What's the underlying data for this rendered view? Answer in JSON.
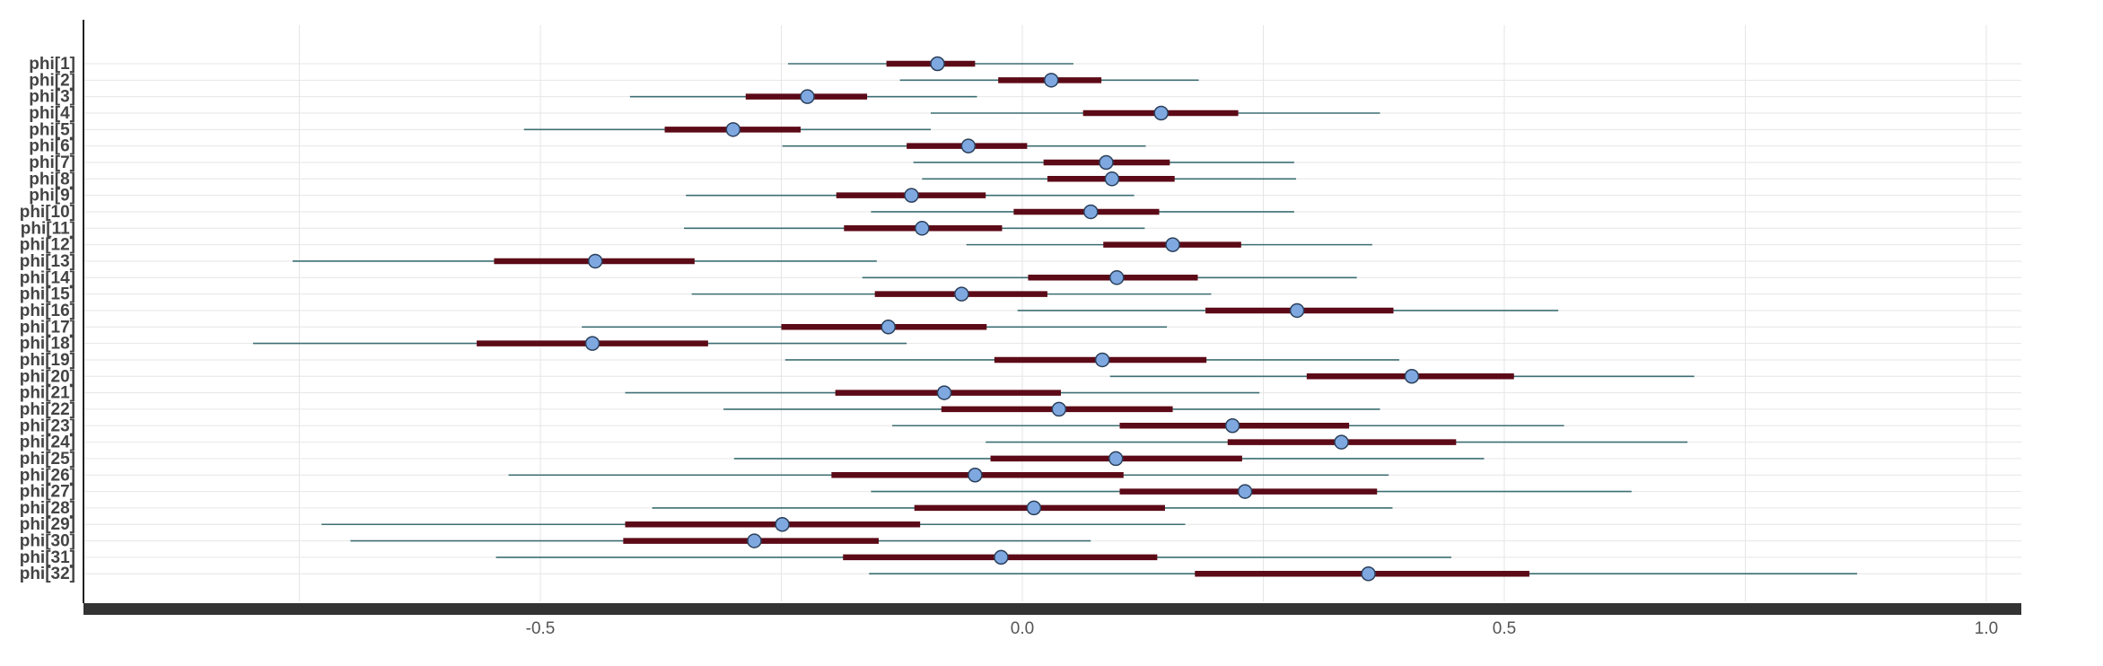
{
  "chart_data": {
    "type": "forest",
    "title": "",
    "xlabel": "",
    "ylabel": "",
    "xlim": [
      -0.95,
      1.04
    ],
    "x_ticks": [
      {
        "value": -0.5,
        "label": "-0.5"
      },
      {
        "value": 0.0,
        "label": "0.0"
      },
      {
        "value": 0.5,
        "label": "0.5"
      },
      {
        "value": 1.0,
        "label": "1.0"
      }
    ],
    "grid": true,
    "colors": {
      "hdi_line": "#3d6e72",
      "iqr_bar": "#5c0a17",
      "point_fill": "#7fa8e0",
      "point_stroke": "#2a3f5a",
      "grid": "#e6e6e6",
      "axis_bar": "#333333",
      "label": "#444444"
    },
    "rows": [
      {
        "label": "phi[1]",
        "hdi": [
          -0.243,
          0.053
        ],
        "iqr": [
          -0.141,
          -0.049
        ],
        "point": -0.088
      },
      {
        "label": "phi[2]",
        "hdi": [
          -0.127,
          0.183
        ],
        "iqr": [
          -0.025,
          0.082
        ],
        "point": 0.03
      },
      {
        "label": "phi[3]",
        "hdi": [
          -0.407,
          -0.047
        ],
        "iqr": [
          -0.287,
          -0.161
        ],
        "point": -0.223
      },
      {
        "label": "phi[4]",
        "hdi": [
          -0.095,
          0.371
        ],
        "iqr": [
          0.063,
          0.224
        ],
        "point": 0.144
      },
      {
        "label": "phi[5]",
        "hdi": [
          -0.517,
          -0.095
        ],
        "iqr": [
          -0.371,
          -0.23
        ],
        "point": -0.3
      },
      {
        "label": "phi[6]",
        "hdi": [
          -0.249,
          0.128
        ],
        "iqr": [
          -0.12,
          0.005
        ],
        "point": -0.056
      },
      {
        "label": "phi[7]",
        "hdi": [
          -0.113,
          0.282
        ],
        "iqr": [
          0.022,
          0.153
        ],
        "point": 0.087
      },
      {
        "label": "phi[8]",
        "hdi": [
          -0.104,
          0.284
        ],
        "iqr": [
          0.026,
          0.158
        ],
        "point": 0.093
      },
      {
        "label": "phi[9]",
        "hdi": [
          -0.349,
          0.116
        ],
        "iqr": [
          -0.193,
          -0.038
        ],
        "point": -0.115
      },
      {
        "label": "phi[10]",
        "hdi": [
          -0.157,
          0.282
        ],
        "iqr": [
          -0.009,
          0.142
        ],
        "point": 0.071
      },
      {
        "label": "phi[11]",
        "hdi": [
          -0.351,
          0.127
        ],
        "iqr": [
          -0.185,
          -0.021
        ],
        "point": -0.104
      },
      {
        "label": "phi[12]",
        "hdi": [
          -0.058,
          0.363
        ],
        "iqr": [
          0.084,
          0.227
        ],
        "point": 0.156
      },
      {
        "label": "phi[13]",
        "hdi": [
          -0.757,
          -0.151
        ],
        "iqr": [
          -0.548,
          -0.34
        ],
        "point": -0.443
      },
      {
        "label": "phi[14]",
        "hdi": [
          -0.166,
          0.347
        ],
        "iqr": [
          0.006,
          0.182
        ],
        "point": 0.098
      },
      {
        "label": "phi[15]",
        "hdi": [
          -0.343,
          0.196
        ],
        "iqr": [
          -0.153,
          0.026
        ],
        "point": -0.063
      },
      {
        "label": "phi[16]",
        "hdi": [
          -0.005,
          0.556
        ],
        "iqr": [
          0.19,
          0.385
        ],
        "point": 0.285
      },
      {
        "label": "phi[17]",
        "hdi": [
          -0.457,
          0.15
        ],
        "iqr": [
          -0.25,
          -0.037
        ],
        "point": -0.139
      },
      {
        "label": "phi[18]",
        "hdi": [
          -0.798,
          -0.12
        ],
        "iqr": [
          -0.566,
          -0.326
        ],
        "point": -0.446
      },
      {
        "label": "phi[19]",
        "hdi": [
          -0.246,
          0.391
        ],
        "iqr": [
          -0.029,
          0.191
        ],
        "point": 0.083
      },
      {
        "label": "phi[20]",
        "hdi": [
          0.091,
          0.697
        ],
        "iqr": [
          0.295,
          0.51
        ],
        "point": 0.404
      },
      {
        "label": "phi[21]",
        "hdi": [
          -0.412,
          0.246
        ],
        "iqr": [
          -0.194,
          0.04
        ],
        "point": -0.081
      },
      {
        "label": "phi[22]",
        "hdi": [
          -0.31,
          0.371
        ],
        "iqr": [
          -0.084,
          0.156
        ],
        "point": 0.038
      },
      {
        "label": "phi[23]",
        "hdi": [
          -0.135,
          0.562
        ],
        "iqr": [
          0.101,
          0.339
        ],
        "point": 0.218
      },
      {
        "label": "phi[24]",
        "hdi": [
          -0.038,
          0.69
        ],
        "iqr": [
          0.213,
          0.45
        ],
        "point": 0.331
      },
      {
        "label": "phi[25]",
        "hdi": [
          -0.299,
          0.479
        ],
        "iqr": [
          -0.033,
          0.228
        ],
        "point": 0.097
      },
      {
        "label": "phi[26]",
        "hdi": [
          -0.533,
          0.38
        ],
        "iqr": [
          -0.198,
          0.105
        ],
        "point": -0.049
      },
      {
        "label": "phi[27]",
        "hdi": [
          -0.157,
          0.632
        ],
        "iqr": [
          0.101,
          0.368
        ],
        "point": 0.231
      },
      {
        "label": "phi[28]",
        "hdi": [
          -0.384,
          0.384
        ],
        "iqr": [
          -0.112,
          0.148
        ],
        "point": 0.012
      },
      {
        "label": "phi[29]",
        "hdi": [
          -0.727,
          0.169
        ],
        "iqr": [
          -0.412,
          -0.106
        ],
        "point": -0.249
      },
      {
        "label": "phi[30]",
        "hdi": [
          -0.697,
          0.071
        ],
        "iqr": [
          -0.414,
          -0.149
        ],
        "point": -0.278
      },
      {
        "label": "phi[31]",
        "hdi": [
          -0.546,
          0.445
        ],
        "iqr": [
          -0.186,
          0.14
        ],
        "point": -0.022
      },
      {
        "label": "phi[32]",
        "hdi": [
          -0.159,
          0.866
        ],
        "iqr": [
          0.179,
          0.526
        ],
        "point": 0.359
      }
    ]
  }
}
